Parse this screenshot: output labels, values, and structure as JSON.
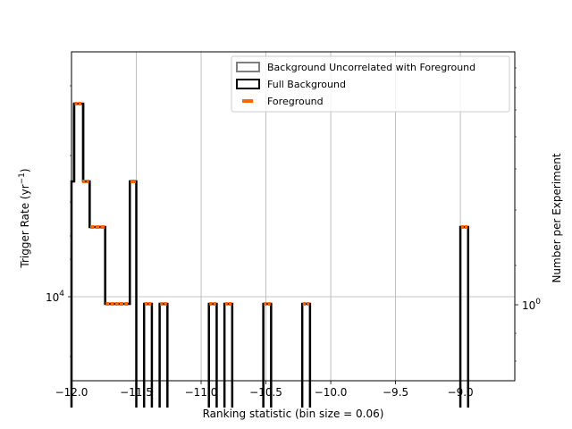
{
  "chart_data": {
    "type": "step",
    "xlabel": "Ranking statistic (bin size = 0.06)",
    "ylabel_left": "Trigger Rate (yr",
    "ylabel_left_sup": "−1",
    "ylabel_left_close": ")",
    "ylabel_right": "Number per Experiment",
    "xlim": [
      -12.0,
      -8.58
    ],
    "x_ticks": [
      {
        "value": -12.0,
        "label": "−12.0"
      },
      {
        "value": -11.5,
        "label": "−11.5"
      },
      {
        "value": -11.0,
        "label": "−11.0"
      },
      {
        "value": -10.5,
        "label": "−10.5"
      },
      {
        "value": -10.0,
        "label": "−10.0"
      },
      {
        "value": -9.5,
        "label": "−9.5"
      },
      {
        "value": -9.0,
        "label": "−9.0"
      }
    ],
    "y_left_scale": "log",
    "y_left_tick": {
      "value": 10000,
      "label_base": "10",
      "label_exp": "4"
    },
    "y_right_scale": "log",
    "y_right_tick": {
      "value": 1,
      "label_base": "10",
      "label_exp": "0"
    },
    "grid": true,
    "legend_position": "top-right",
    "legend": [
      {
        "label": "Background Uncorrelated with Foreground",
        "color": "#808080",
        "style": "box"
      },
      {
        "label": "Full Background",
        "color": "#000000",
        "style": "box"
      },
      {
        "label": "Foreground",
        "color": "#ff6600",
        "style": "dash"
      }
    ],
    "series": [
      {
        "name": "Full Background",
        "color": "#000000",
        "bins": [
          {
            "x0": -12.0,
            "x1": -11.98,
            "level": 3
          },
          {
            "x0": -11.98,
            "x1": -11.91,
            "level": 6
          },
          {
            "x0": -11.91,
            "x1": -11.86,
            "level": 3
          },
          {
            "x0": -11.86,
            "x1": -11.74,
            "level": 2
          },
          {
            "x0": -11.74,
            "x1": -11.55,
            "level": 1
          },
          {
            "x0": -11.55,
            "x1": -11.5,
            "level": 3
          },
          {
            "x0": -11.44,
            "x1": -11.38,
            "level": 1
          },
          {
            "x0": -11.32,
            "x1": -11.26,
            "level": 1
          },
          {
            "x0": -10.94,
            "x1": -10.88,
            "level": 1
          },
          {
            "x0": -10.82,
            "x1": -10.76,
            "level": 1
          },
          {
            "x0": -10.52,
            "x1": -10.46,
            "level": 1
          },
          {
            "x0": -10.22,
            "x1": -10.16,
            "level": 1
          },
          {
            "x0": -9.0,
            "x1": -8.94,
            "level": 2
          }
        ]
      },
      {
        "name": "Foreground",
        "color": "#ff6600",
        "bins": [
          {
            "x0": -11.98,
            "x1": -11.92,
            "level": 6
          },
          {
            "x0": -11.92,
            "x1": -11.86,
            "level": 3
          },
          {
            "x0": -11.86,
            "x1": -11.74,
            "level": 2
          },
          {
            "x0": -11.74,
            "x1": -11.56,
            "level": 1
          },
          {
            "x0": -11.55,
            "x1": -11.5,
            "level": 3
          },
          {
            "x0": -11.44,
            "x1": -11.38,
            "level": 1
          },
          {
            "x0": -11.32,
            "x1": -11.26,
            "level": 1
          },
          {
            "x0": -10.94,
            "x1": -10.88,
            "level": 1
          },
          {
            "x0": -10.82,
            "x1": -10.76,
            "level": 1
          },
          {
            "x0": -10.52,
            "x1": -10.46,
            "level": 1
          },
          {
            "x0": -10.22,
            "x1": -10.16,
            "level": 1
          },
          {
            "x0": -9.0,
            "x1": -8.94,
            "level": 2
          }
        ]
      }
    ]
  }
}
